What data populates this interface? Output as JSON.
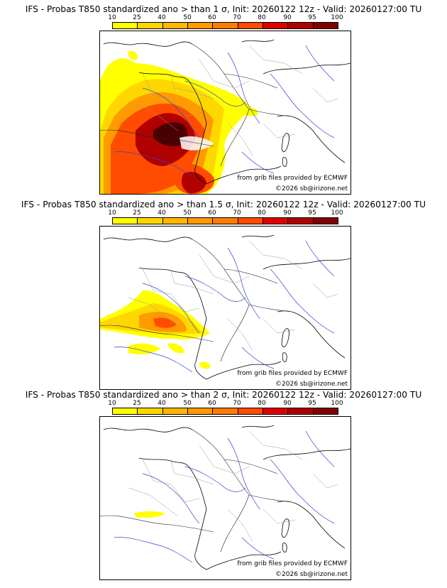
{
  "colors": {
    "scale": [
      "#ffff00",
      "#ffd700",
      "#ffb700",
      "#ff9a00",
      "#ff7c00",
      "#ff4c00",
      "#e00000",
      "#b00000",
      "#820000",
      "#4a0000"
    ],
    "border": "#000000",
    "rivers": "#3344cc",
    "regions": "#999999"
  },
  "scale": {
    "ticks": [
      "10",
      "25",
      "40",
      "50",
      "60",
      "70",
      "80",
      "90",
      "95",
      "100"
    ]
  },
  "panels": [
    {
      "title": "IFS - Probas T850  standardized ano > than 1 σ, Init: 20260122 12z - Valid: 20260127:00 TU",
      "credit_source": "from grib files provided by ECMWF",
      "credit_copyright": "©2026 sb@irizone.net"
    },
    {
      "title": "IFS - Probas T850  standardized ano > than 1.5 σ, Init: 20260122 12z - Valid: 20260127:00 TU",
      "credit_source": "from grib files provided by ECMWF",
      "credit_copyright": "©2026 sb@irizone.net"
    },
    {
      "title": "IFS - Probas T850  standardized ano > than 2 σ, Init: 20260122 12z - Valid: 20260127:00 TU",
      "credit_source": "from grib files provided by ECMWF",
      "credit_copyright": "©2026 sb@irizone.net"
    }
  ]
}
